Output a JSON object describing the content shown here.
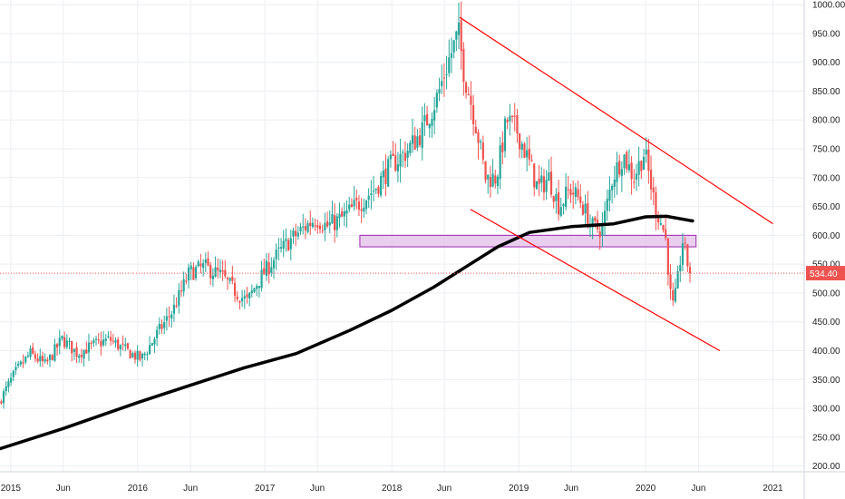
{
  "colors": {
    "up": "#26a69a",
    "down": "#ef5350",
    "ma": "#000000",
    "channel": "#ff0000",
    "zone_fill": "#e1bee7",
    "zone_border": "#9c27b0",
    "price_line": "#ef5350",
    "price_badge": "#ef5350",
    "grid": "#eceef2"
  },
  "chart_data": {
    "type": "candlestick",
    "title": "",
    "xlabel": "",
    "ylabel": "",
    "ylim": [
      190,
      1008
    ],
    "xlim": [
      "2014-12-01",
      "2021-04-01"
    ],
    "grid": true,
    "y_ticks": [
      "1000.00",
      "950.00",
      "900.00",
      "850.00",
      "800.00",
      "750.00",
      "700.00",
      "650.00",
      "600.00",
      "550.00",
      "500.00",
      "450.00",
      "400.00",
      "350.00",
      "300.00",
      "250.00",
      "200.00"
    ],
    "x_ticks": [
      {
        "label": "2015",
        "date": "2015-01-01"
      },
      {
        "label": "Jun",
        "date": "2015-06-01"
      },
      {
        "label": "2016",
        "date": "2016-01-01"
      },
      {
        "label": "Jun",
        "date": "2016-06-01"
      },
      {
        "label": "2017",
        "date": "2017-01-01"
      },
      {
        "label": "Jun",
        "date": "2017-06-01"
      },
      {
        "label": "2018",
        "date": "2018-01-01"
      },
      {
        "label": "Jun",
        "date": "2018-06-01"
      },
      {
        "label": "2019",
        "date": "2019-01-01"
      },
      {
        "label": "Jun",
        "date": "2019-06-01"
      },
      {
        "label": "2020",
        "date": "2020-01-01"
      },
      {
        "label": "Jun",
        "date": "2020-06-01"
      },
      {
        "label": "2021",
        "date": "2021-01-01"
      }
    ],
    "price_anchors": [
      [
        "2014-12-01",
        310
      ],
      [
        "2015-01-15",
        360
      ],
      [
        "2015-03-01",
        395
      ],
      [
        "2015-04-15",
        375
      ],
      [
        "2015-06-01",
        420
      ],
      [
        "2015-07-15",
        395
      ],
      [
        "2015-09-01",
        410
      ],
      [
        "2015-10-15",
        420
      ],
      [
        "2015-12-01",
        400
      ],
      [
        "2016-01-15",
        385
      ],
      [
        "2016-03-01",
        430
      ],
      [
        "2016-04-15",
        470
      ],
      [
        "2016-06-01",
        535
      ],
      [
        "2016-07-15",
        545
      ],
      [
        "2016-09-01",
        530
      ],
      [
        "2016-10-15",
        500
      ],
      [
        "2016-11-15",
        485
      ],
      [
        "2016-12-15",
        520
      ],
      [
        "2017-02-01",
        560
      ],
      [
        "2017-03-15",
        590
      ],
      [
        "2017-05-01",
        615
      ],
      [
        "2017-06-01",
        630
      ],
      [
        "2017-07-01",
        615
      ],
      [
        "2017-08-15",
        630
      ],
      [
        "2017-10-01",
        655
      ],
      [
        "2017-11-15",
        680
      ],
      [
        "2018-01-01",
        720
      ],
      [
        "2018-02-15",
        745
      ],
      [
        "2018-04-01",
        780
      ],
      [
        "2018-05-15",
        840
      ],
      [
        "2018-06-15",
        900
      ],
      [
        "2018-07-15",
        950
      ],
      [
        "2018-08-01",
        880
      ],
      [
        "2018-09-01",
        800
      ],
      [
        "2018-10-01",
        700
      ],
      [
        "2018-11-01",
        700
      ],
      [
        "2018-12-01",
        800
      ],
      [
        "2019-01-01",
        780
      ],
      [
        "2019-02-01",
        730
      ],
      [
        "2019-03-01",
        680
      ],
      [
        "2019-04-01",
        700
      ],
      [
        "2019-05-01",
        650
      ],
      [
        "2019-06-01",
        680
      ],
      [
        "2019-07-01",
        660
      ],
      [
        "2019-08-01",
        615
      ],
      [
        "2019-09-01",
        610
      ],
      [
        "2019-10-01",
        700
      ],
      [
        "2019-11-01",
        740
      ],
      [
        "2019-12-01",
        700
      ],
      [
        "2020-01-01",
        745
      ],
      [
        "2020-02-01",
        650
      ],
      [
        "2020-03-01",
        600
      ],
      [
        "2020-03-20",
        470
      ],
      [
        "2020-04-01",
        500
      ],
      [
        "2020-04-20",
        590
      ],
      [
        "2020-05-10",
        534.4
      ]
    ],
    "series": [
      {
        "type": "moving_average",
        "values": [
          [
            "2014-12-01",
            230
          ],
          [
            "2015-06-01",
            265
          ],
          [
            "2016-01-01",
            310
          ],
          [
            "2016-06-01",
            340
          ],
          [
            "2016-11-01",
            370
          ],
          [
            "2017-04-01",
            395
          ],
          [
            "2017-09-01",
            435
          ],
          [
            "2018-01-01",
            470
          ],
          [
            "2018-05-01",
            510
          ],
          [
            "2018-08-01",
            545
          ],
          [
            "2018-11-01",
            580
          ],
          [
            "2019-02-01",
            605
          ],
          [
            "2019-06-01",
            615
          ],
          [
            "2019-10-01",
            620
          ],
          [
            "2020-01-01",
            632
          ],
          [
            "2020-03-01",
            633
          ],
          [
            "2020-05-15",
            625
          ]
        ]
      }
    ],
    "channel_upper": [
      [
        "2018-07-15",
        978
      ],
      [
        "2021-01-01",
        620
      ]
    ],
    "channel_lower": [
      [
        "2018-08-15",
        645
      ],
      [
        "2020-08-01",
        400
      ]
    ],
    "zone": {
      "date_start": "2017-10-01",
      "date_end": "2020-05-25",
      "low": 580,
      "high": 600
    },
    "last_price": {
      "value": 534.4,
      "label": "534.40"
    }
  }
}
